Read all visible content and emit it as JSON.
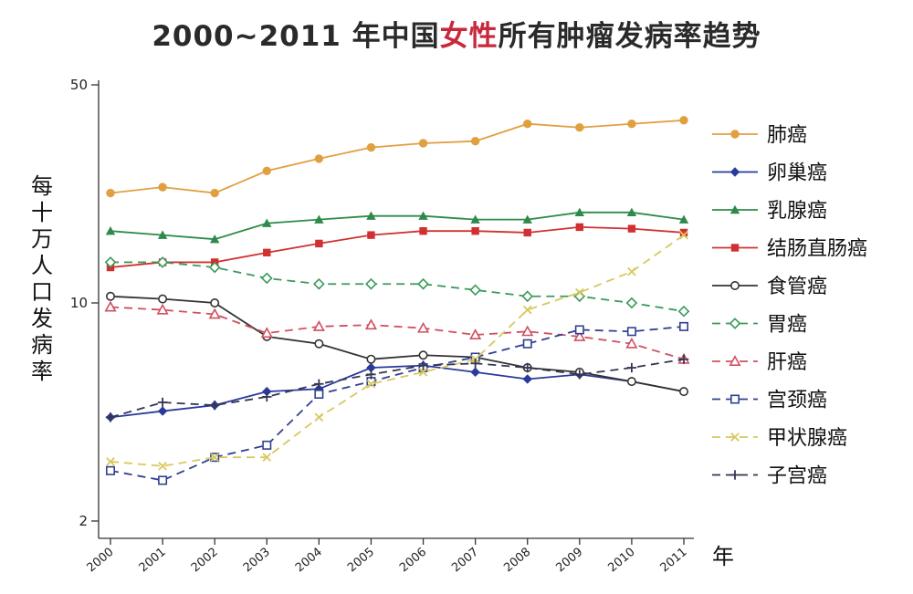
{
  "title": {
    "prefix": "2000~2011 年中国",
    "highlight": "女性",
    "suffix": "所有肿瘤发病率趋势",
    "highlight_color": "#c8283c"
  },
  "chart_data": {
    "type": "line",
    "ylabel": "每十万人口发病率",
    "xlabel": "年",
    "y_scale": "log",
    "ylim": [
      2,
      50
    ],
    "y_ticks": [
      2,
      10,
      50
    ],
    "x": [
      2000,
      2001,
      2002,
      2003,
      2004,
      2005,
      2006,
      2007,
      2008,
      2009,
      2010,
      2011
    ],
    "legend_position": "right",
    "series": [
      {
        "name": "肺癌",
        "color": "#e0a040",
        "dash": "solid",
        "marker": "circle-filled",
        "values": [
          22.5,
          23.5,
          22.5,
          26.5,
          29.0,
          31.5,
          32.5,
          33.0,
          37.5,
          36.5,
          37.5,
          38.5
        ]
      },
      {
        "name": "卵巢癌",
        "color": "#2a3a9a",
        "dash": "solid",
        "marker": "diamond-filled",
        "values": [
          4.3,
          4.5,
          4.7,
          5.2,
          5.3,
          6.2,
          6.3,
          6.0,
          5.7,
          5.9,
          5.6,
          5.2
        ]
      },
      {
        "name": "乳腺癌",
        "color": "#2e8a4a",
        "dash": "solid",
        "marker": "triangle-filled",
        "values": [
          17.0,
          16.5,
          16.0,
          18.0,
          18.5,
          19.0,
          19.0,
          18.5,
          18.5,
          19.5,
          19.5,
          18.5
        ]
      },
      {
        "name": "结肠直肠癌",
        "color": "#d23030",
        "dash": "solid",
        "marker": "square-filled",
        "values": [
          13.0,
          13.5,
          13.5,
          14.5,
          15.5,
          16.5,
          17.0,
          17.0,
          16.8,
          17.5,
          17.3,
          16.8
        ]
      },
      {
        "name": "食管癌",
        "color": "#333333",
        "dash": "solid",
        "marker": "circle-open",
        "values": [
          10.5,
          10.3,
          10.0,
          7.8,
          7.4,
          6.6,
          6.8,
          6.7,
          6.2,
          6.0,
          5.6,
          5.2
        ]
      },
      {
        "name": "胃癌",
        "color": "#3a9a5a",
        "dash": "dashed",
        "marker": "diamond-open",
        "values": [
          13.5,
          13.5,
          13.0,
          12.0,
          11.5,
          11.5,
          11.5,
          11.0,
          10.5,
          10.5,
          10.0,
          9.4
        ]
      },
      {
        "name": "肝癌",
        "color": "#d05060",
        "dash": "dashed",
        "marker": "triangle-open",
        "values": [
          9.7,
          9.5,
          9.2,
          8.0,
          8.4,
          8.5,
          8.3,
          7.9,
          8.1,
          7.8,
          7.4,
          6.6
        ]
      },
      {
        "name": "宫颈癌",
        "color": "#304090",
        "dash": "dashed",
        "marker": "square-open",
        "values": [
          2.9,
          2.7,
          3.2,
          3.5,
          5.1,
          5.6,
          6.2,
          6.7,
          7.4,
          8.2,
          8.1,
          8.4
        ]
      },
      {
        "name": "甲状腺癌",
        "color": "#d8c860",
        "dash": "dashed",
        "marker": "x",
        "values": [
          3.1,
          3.0,
          3.2,
          3.2,
          4.3,
          5.5,
          6.0,
          6.6,
          9.5,
          10.8,
          12.6,
          16.5
        ]
      },
      {
        "name": "子宫癌",
        "color": "#353555",
        "dash": "dashed",
        "marker": "plus",
        "values": [
          4.3,
          4.8,
          4.7,
          5.0,
          5.5,
          5.9,
          6.3,
          6.4,
          6.2,
          5.9,
          6.2,
          6.6
        ]
      }
    ]
  }
}
